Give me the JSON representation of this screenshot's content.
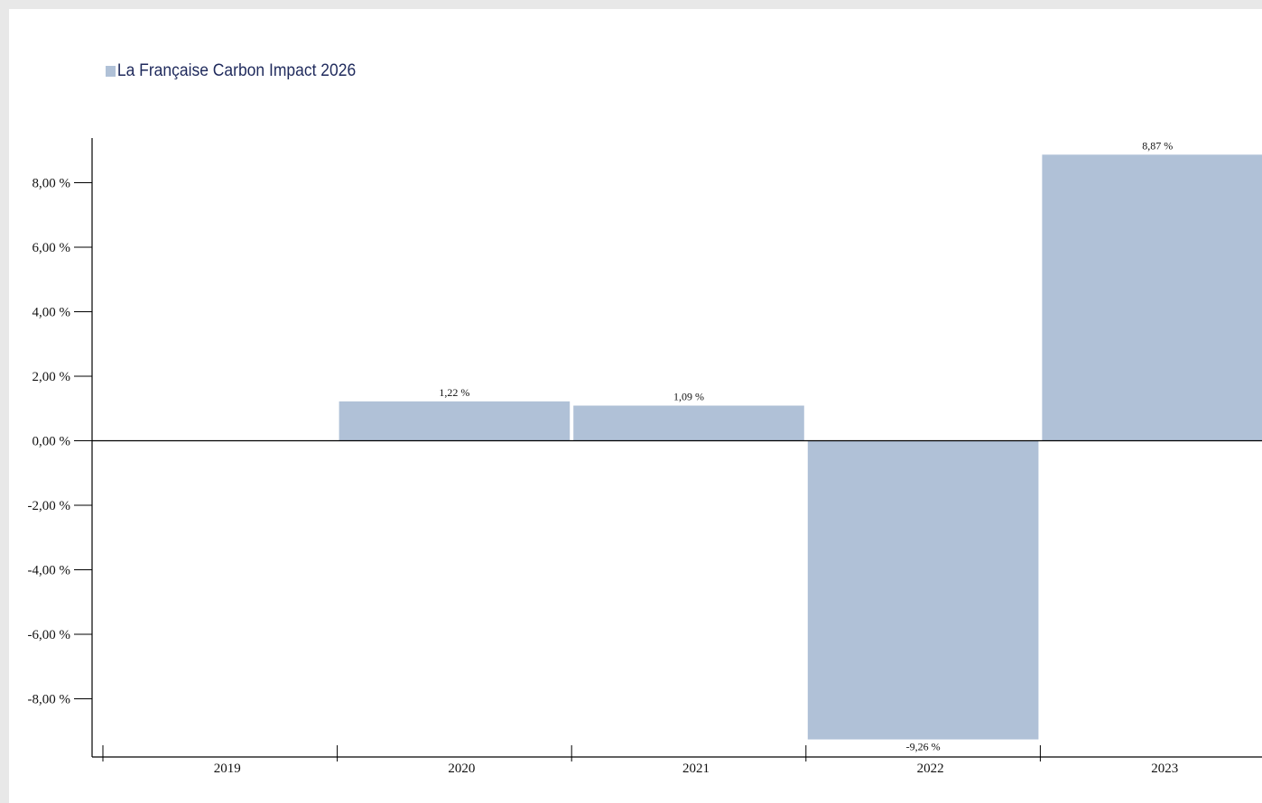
{
  "chart_data": {
    "type": "bar",
    "title": "",
    "xlabel": "",
    "ylabel": "",
    "categories": [
      "2019",
      "2020",
      "2021",
      "2022",
      "2023"
    ],
    "series": [
      {
        "name": "La Française Carbon Impact 2026",
        "values": [
          null,
          1.22,
          1.09,
          -9.26,
          8.87
        ],
        "value_labels": [
          "",
          "1,22 %",
          "1,09 %",
          "-9,26 %",
          "8,87 %"
        ],
        "color": "#b0c1d7"
      }
    ],
    "yticks": [
      8,
      6,
      4,
      2,
      0,
      -2,
      -4,
      -6,
      -8
    ],
    "ytick_labels": [
      "8,00 %",
      "6,00 %",
      "4,00 %",
      "2,00 %",
      "0,00 %",
      "-2,00 %",
      "-4,00 %",
      "-6,00 %",
      "-8,00 %"
    ],
    "ylim": [
      -9.8,
      9.6
    ],
    "grid": false,
    "legend_position": "top-left"
  }
}
